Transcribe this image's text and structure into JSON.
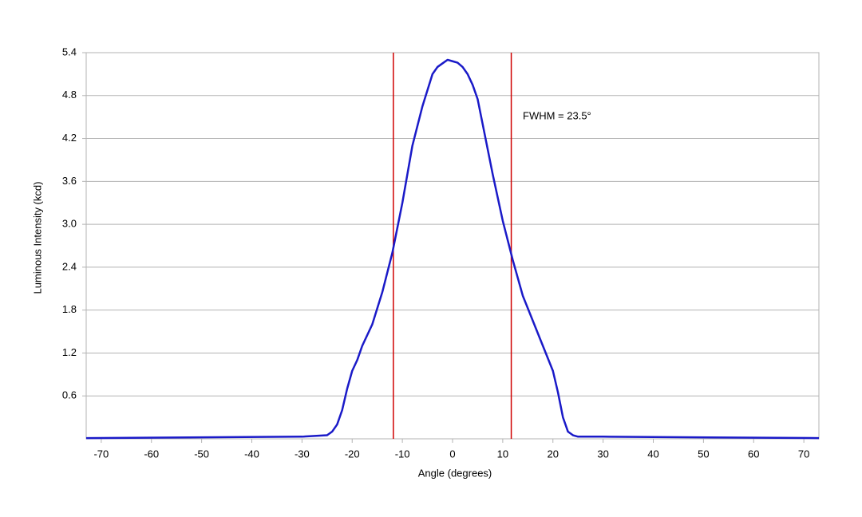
{
  "chart_data": {
    "type": "line",
    "xlabel": "Angle (degrees)",
    "ylabel": "Luminous Intensity (kcd)",
    "xlim": [
      -73,
      73
    ],
    "ylim": [
      0,
      5.4
    ],
    "xticks": [
      -70,
      -60,
      -50,
      -40,
      -30,
      -20,
      -10,
      0,
      10,
      20,
      30,
      40,
      50,
      60,
      70
    ],
    "yticks": [
      0.6,
      {
        "value": 1.2,
        "label": "1.2"
      },
      1.8,
      2.4,
      {
        "value": 3,
        "label": "3.0"
      },
      3.6,
      4.2,
      4.8,
      5.4
    ],
    "grid": true,
    "x": [
      -73,
      -30,
      -25,
      -24,
      -23,
      -22,
      -21,
      -20,
      -19,
      -18,
      -16,
      -14,
      -12,
      -10,
      -8,
      -6,
      -4,
      -3,
      -2,
      -1,
      0,
      1,
      2,
      3,
      4,
      5,
      6,
      8,
      10,
      12,
      14,
      16,
      18,
      20,
      21,
      22,
      23,
      24,
      25,
      30,
      73
    ],
    "series": [
      {
        "color": "#1a1ac8",
        "values": [
          0.01,
          0.03,
          0.05,
          0.1,
          0.2,
          0.4,
          0.7,
          0.95,
          1.1,
          1.3,
          1.6,
          2.05,
          2.6,
          3.3,
          4.1,
          4.65,
          5.1,
          5.2,
          5.25,
          5.3,
          5.28,
          5.26,
          5.2,
          5.1,
          4.95,
          4.75,
          4.4,
          3.7,
          3.05,
          2.5,
          2.0,
          1.65,
          1.3,
          0.95,
          0.65,
          0.3,
          0.1,
          0.05,
          0.03,
          0.03,
          0.01
        ]
      }
    ],
    "vlines": {
      "color": "#d00000",
      "values": [
        -11.8,
        11.7
      ]
    },
    "annotation": "FWHM = 23.5°"
  }
}
